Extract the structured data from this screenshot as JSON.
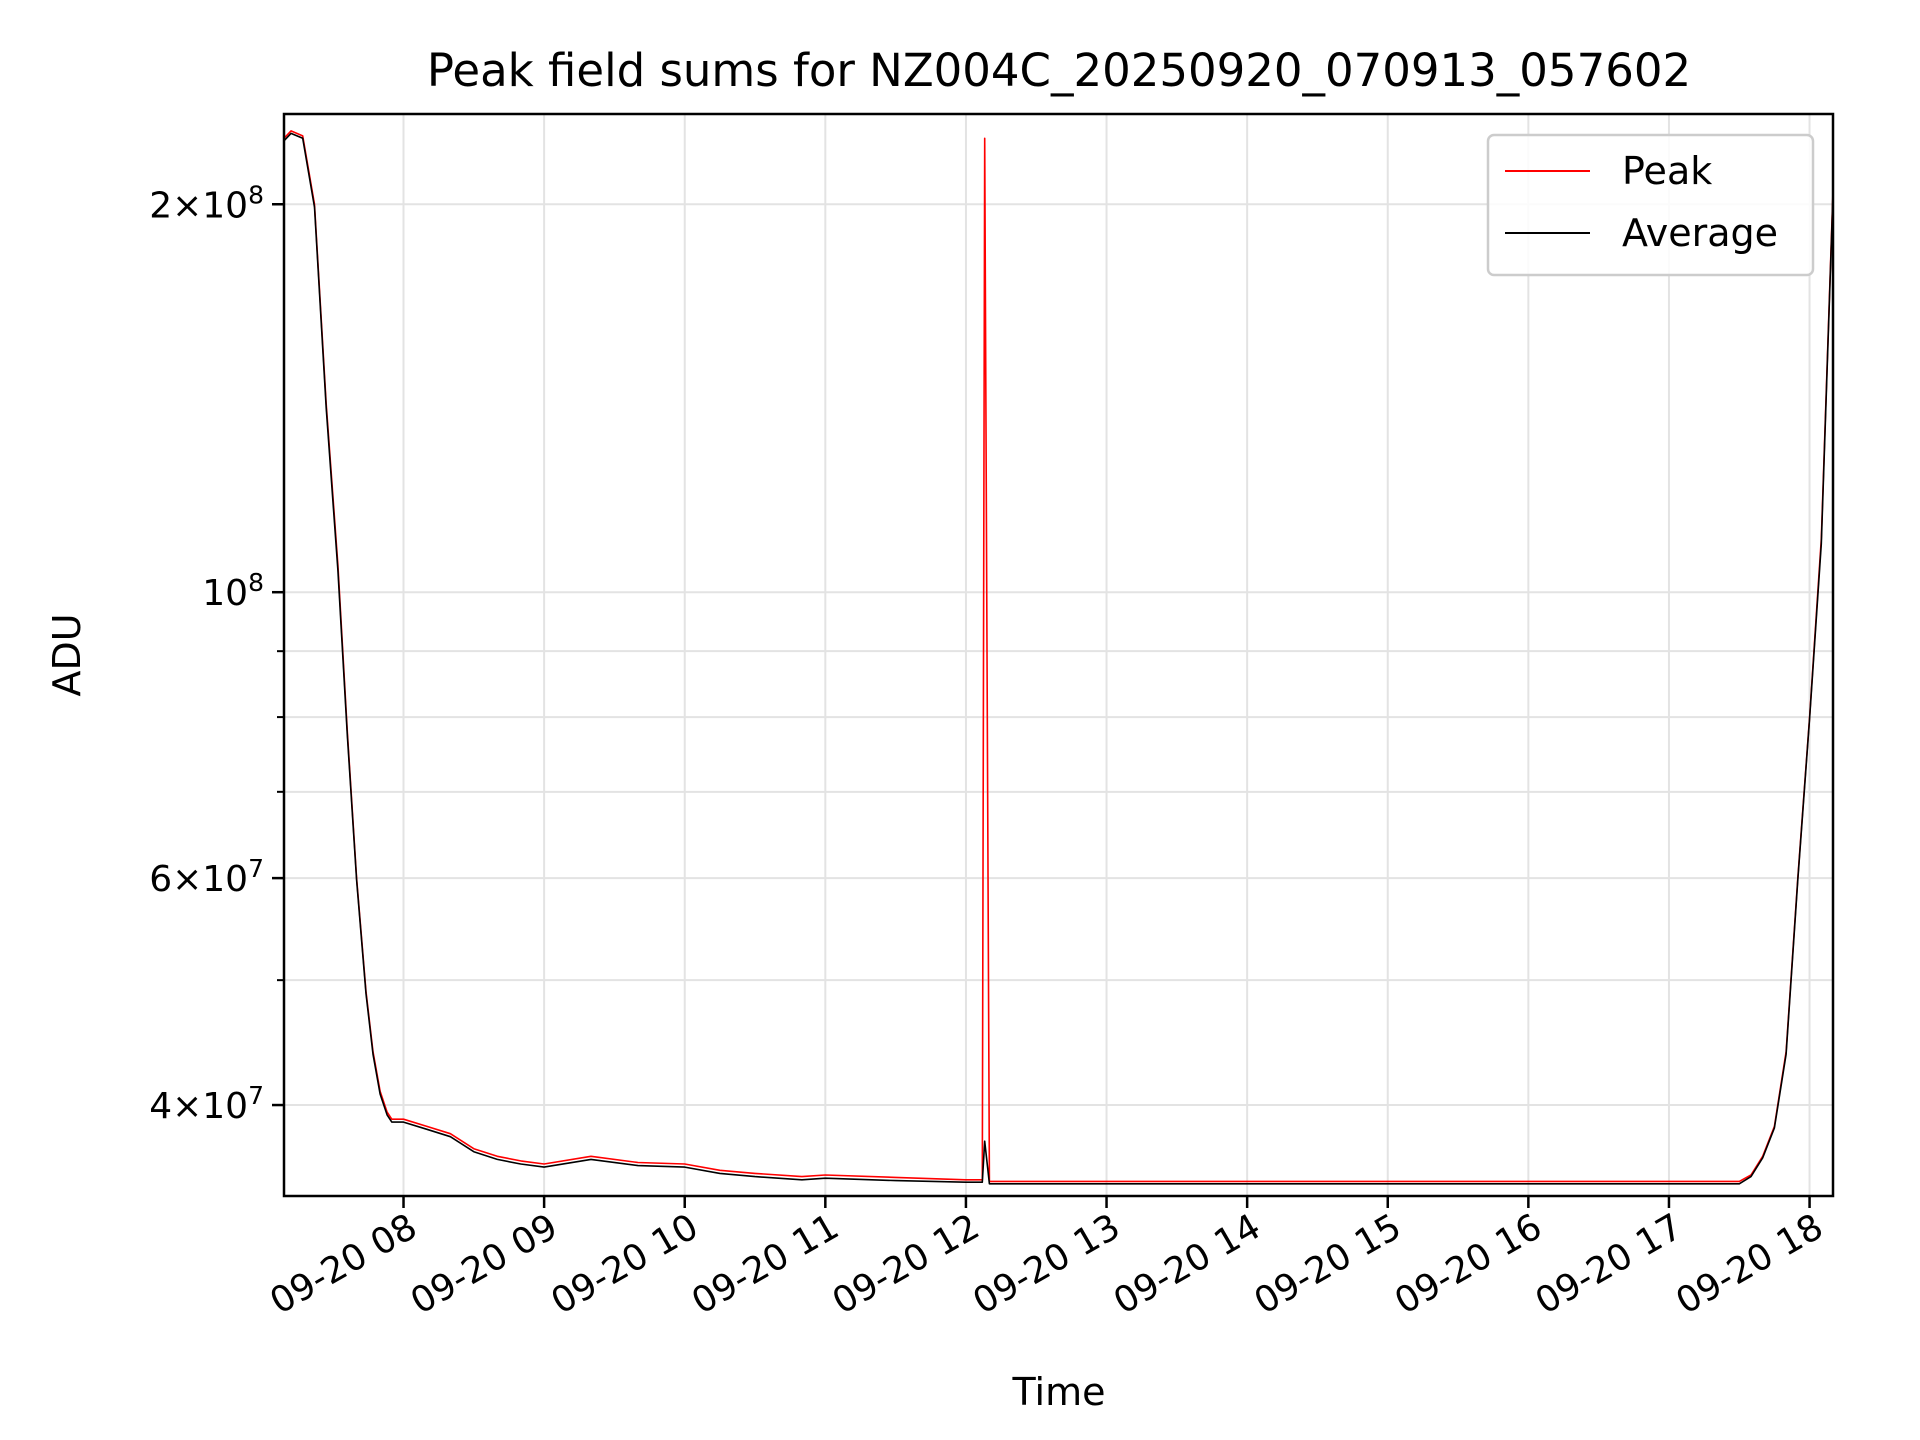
{
  "chart_data": {
    "type": "line",
    "title": "Peak field sums for NZ004C_20250920_070913_057602",
    "xlabel": "Time",
    "ylabel": "ADU",
    "yscale": "log",
    "ylim": [
      34000000,
      235000000
    ],
    "xlim": [
      "09-20 07:09",
      "09-20 18:10"
    ],
    "grid": true,
    "legend_position": "top-right",
    "x_ticks": [
      {
        "value": "09-20 08:00",
        "label": "09-20 08"
      },
      {
        "value": "09-20 09:00",
        "label": "09-20 09"
      },
      {
        "value": "09-20 10:00",
        "label": "09-20 10"
      },
      {
        "value": "09-20 11:00",
        "label": "09-20 11"
      },
      {
        "value": "09-20 12:00",
        "label": "09-20 12"
      },
      {
        "value": "09-20 13:00",
        "label": "09-20 13"
      },
      {
        "value": "09-20 14:00",
        "label": "09-20 14"
      },
      {
        "value": "09-20 15:00",
        "label": "09-20 15"
      },
      {
        "value": "09-20 16:00",
        "label": "09-20 16"
      },
      {
        "value": "09-20 17:00",
        "label": "09-20 17"
      },
      {
        "value": "09-20 18:00",
        "label": "09-20 18"
      }
    ],
    "y_ticks": [
      {
        "value": 40000000,
        "mantissa": "4",
        "base": "10",
        "exp": "7"
      },
      {
        "value": 60000000,
        "mantissa": "6",
        "base": "10",
        "exp": "7"
      },
      {
        "value": 100000000,
        "mantissa": "",
        "base": "10",
        "exp": "8"
      },
      {
        "value": 200000000,
        "mantissa": "2",
        "base": "10",
        "exp": "8"
      }
    ],
    "series": [
      {
        "name": "Peak",
        "color": "#ff0000",
        "x": [
          "09-20 07:09",
          "09-20 07:12",
          "09-20 07:17",
          "09-20 07:22",
          "09-20 07:27",
          "09-20 07:32",
          "09-20 07:36",
          "09-20 07:40",
          "09-20 07:44",
          "09-20 07:47",
          "09-20 07:50",
          "09-20 07:53",
          "09-20 07:55",
          "09-20 08:00",
          "09-20 08:10",
          "09-20 08:20",
          "09-20 08:30",
          "09-20 08:40",
          "09-20 08:50",
          "09-20 09:00",
          "09-20 09:20",
          "09-20 09:40",
          "09-20 10:00",
          "09-20 10:15",
          "09-20 10:30",
          "09-20 10:50",
          "09-20 11:00",
          "09-20 11:30",
          "09-20 12:00",
          "09-20 12:07",
          "09-20 12:08",
          "09-20 12:10",
          "09-20 13:00",
          "09-20 14:00",
          "09-20 15:00",
          "09-20 16:00",
          "09-20 17:00",
          "09-20 17:30",
          "09-20 17:35",
          "09-20 17:40",
          "09-20 17:45",
          "09-20 17:50",
          "09-20 17:55",
          "09-20 18:00",
          "09-20 18:05",
          "09-20 18:10"
        ],
        "y": [
          225000000,
          228000000,
          226000000,
          200000000,
          140000000,
          105000000,
          78000000,
          60000000,
          49000000,
          44000000,
          41000000,
          39500000,
          39000000,
          39000000,
          38500000,
          38000000,
          37000000,
          36500000,
          36200000,
          36000000,
          36500000,
          36100000,
          36000000,
          35600000,
          35400000,
          35200000,
          35300000,
          35150000,
          35000000,
          35000000,
          225000000,
          34900000,
          34900000,
          34900000,
          34900000,
          34900000,
          34900000,
          34900000,
          35300000,
          36500000,
          38500000,
          44000000,
          60000000,
          80000000,
          110000000,
          205000000
        ]
      },
      {
        "name": "Average",
        "color": "#000000",
        "x": [
          "09-20 07:09",
          "09-20 07:12",
          "09-20 07:17",
          "09-20 07:22",
          "09-20 07:27",
          "09-20 07:32",
          "09-20 07:36",
          "09-20 07:40",
          "09-20 07:44",
          "09-20 07:47",
          "09-20 07:50",
          "09-20 07:53",
          "09-20 07:55",
          "09-20 08:00",
          "09-20 08:10",
          "09-20 08:20",
          "09-20 08:30",
          "09-20 08:40",
          "09-20 08:50",
          "09-20 09:00",
          "09-20 09:20",
          "09-20 09:40",
          "09-20 10:00",
          "09-20 10:15",
          "09-20 10:30",
          "09-20 10:50",
          "09-20 11:00",
          "09-20 11:30",
          "09-20 12:00",
          "09-20 12:07",
          "09-20 12:08",
          "09-20 12:10",
          "09-20 13:00",
          "09-20 14:00",
          "09-20 15:00",
          "09-20 16:00",
          "09-20 17:00",
          "09-20 17:30",
          "09-20 17:35",
          "09-20 17:40",
          "09-20 17:45",
          "09-20 17:50",
          "09-20 17:55",
          "09-20 18:00",
          "09-20 18:05",
          "09-20 18:10"
        ],
        "y": [
          224000000,
          227000000,
          225000000,
          199000000,
          139000000,
          104000000,
          77500000,
          59800000,
          48800000,
          43800000,
          40800000,
          39300000,
          38800000,
          38800000,
          38300000,
          37800000,
          36800000,
          36300000,
          36000000,
          35800000,
          36300000,
          35900000,
          35800000,
          35400000,
          35200000,
          35000000,
          35100000,
          34950000,
          34850000,
          34850000,
          37500000,
          34750000,
          34750000,
          34750000,
          34750000,
          34750000,
          34750000,
          34750000,
          35200000,
          36400000,
          38400000,
          43800000,
          59800000,
          79800000,
          109000000,
          204000000
        ]
      }
    ]
  }
}
